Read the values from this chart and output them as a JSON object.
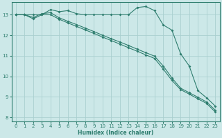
{
  "xlabel": "Humidex (Indice chaleur)",
  "xlim": [
    -0.5,
    23.5
  ],
  "ylim": [
    7.8,
    13.6
  ],
  "yticks": [
    8,
    9,
    10,
    11,
    12,
    13
  ],
  "xticks": [
    0,
    1,
    2,
    3,
    4,
    5,
    6,
    7,
    8,
    9,
    10,
    11,
    12,
    13,
    14,
    15,
    16,
    17,
    18,
    19,
    20,
    21,
    22,
    23
  ],
  "bg_color": "#cce8e8",
  "line_color": "#2e7d6e",
  "grid_color": "#aacfcf",
  "line1_x": [
    0,
    1,
    2,
    3,
    4,
    5,
    6,
    7,
    8,
    9,
    10,
    11,
    12,
    13,
    14,
    15,
    16,
    17,
    18,
    19,
    20,
    21,
    22,
    23
  ],
  "line1_y": [
    13.0,
    13.0,
    13.0,
    13.0,
    13.25,
    13.15,
    13.2,
    13.05,
    13.0,
    13.0,
    13.0,
    13.0,
    13.0,
    13.0,
    13.35,
    13.4,
    13.2,
    12.5,
    12.25,
    11.1,
    10.5,
    9.3,
    8.95,
    8.55
  ],
  "line2_x": [
    0,
    1,
    2,
    3,
    4,
    5,
    6,
    7,
    8,
    9,
    10,
    11,
    12,
    13,
    14,
    15,
    16,
    17,
    18,
    19,
    20,
    21,
    22,
    23
  ],
  "line2_y": [
    13.0,
    13.0,
    12.8,
    13.0,
    13.0,
    12.78,
    12.6,
    12.43,
    12.26,
    12.09,
    11.91,
    11.74,
    11.57,
    11.39,
    11.22,
    11.04,
    10.87,
    10.35,
    9.8,
    9.35,
    9.13,
    8.9,
    8.68,
    8.26
  ],
  "line3_x": [
    0,
    1,
    2,
    3,
    4,
    5,
    6,
    7,
    8,
    9,
    10,
    11,
    12,
    13,
    14,
    15,
    16,
    17,
    18,
    19,
    20,
    21,
    22,
    23
  ],
  "line3_y": [
    13.0,
    13.0,
    12.87,
    13.05,
    13.1,
    12.85,
    12.68,
    12.52,
    12.35,
    12.18,
    12.0,
    11.83,
    11.67,
    11.5,
    11.32,
    11.15,
    10.98,
    10.5,
    9.92,
    9.42,
    9.2,
    8.98,
    8.75,
    8.35
  ]
}
